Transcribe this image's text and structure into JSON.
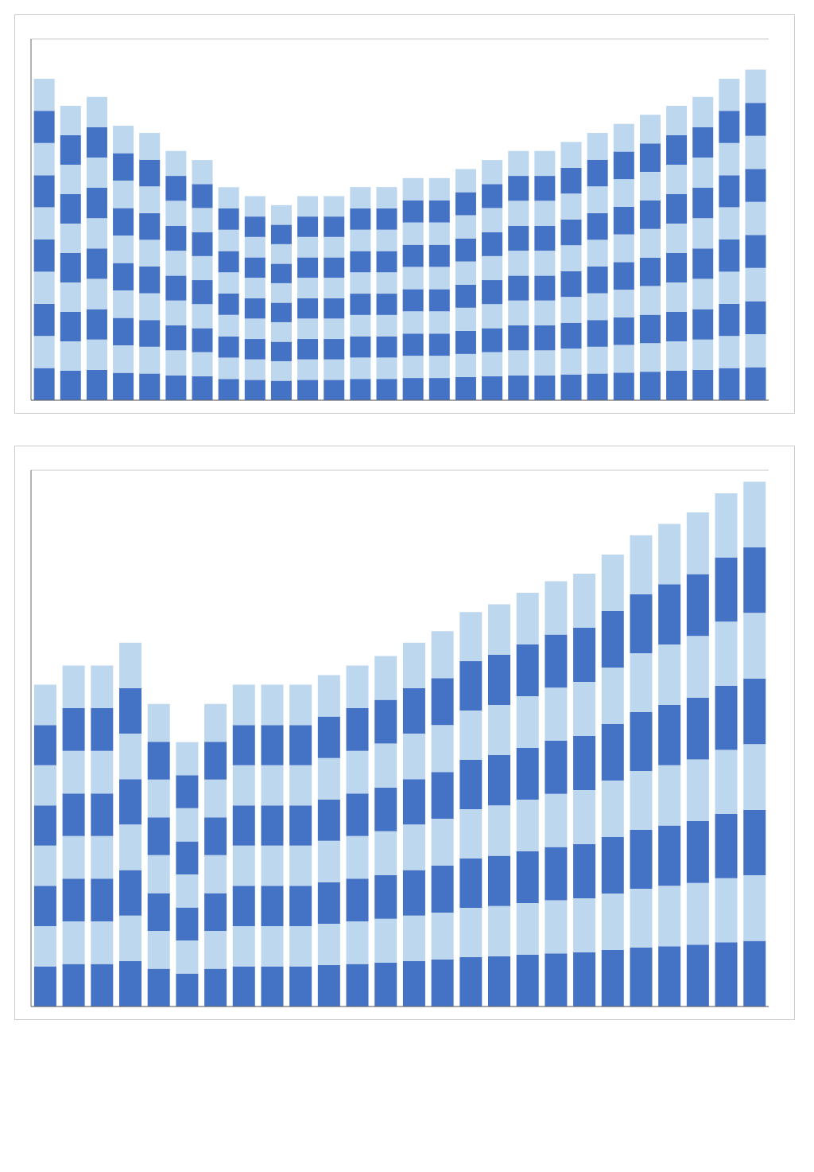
{
  "chart_data": [
    {
      "type": "bar",
      "stacked": true,
      "grid": true,
      "tick_labels": false,
      "categories": [
        null,
        null,
        null,
        null,
        null,
        null,
        null,
        null,
        null,
        null,
        null,
        null,
        null,
        null,
        null,
        null,
        null,
        null,
        null,
        null,
        null,
        null,
        null,
        null,
        null,
        null,
        null,
        null
      ],
      "ylim": [
        0,
        200
      ],
      "yticks": [
        0,
        20,
        40,
        60,
        80,
        100,
        120,
        140,
        160,
        180,
        200
      ],
      "series": [
        {
          "color": "#4472C4",
          "values": [
            17.8,
            16.3,
            16.8,
            15.2,
            14.8,
            13.8,
            13.3,
            11.8,
            11.3,
            10.8,
            11.3,
            11.3,
            11.8,
            11.8,
            12.3,
            12.3,
            12.8,
            13.3,
            13.8,
            13.8,
            14.3,
            14.8,
            15.3,
            15.8,
            16.3,
            16.8,
            17.8,
            18.3
          ]
        },
        {
          "color": "#BDD7EE",
          "values": [
            17.8,
            16.3,
            16.8,
            15.2,
            14.8,
            13.8,
            13.3,
            11.8,
            11.3,
            10.8,
            11.3,
            11.3,
            11.8,
            11.8,
            12.3,
            12.3,
            12.8,
            13.3,
            13.8,
            13.8,
            14.3,
            14.8,
            15.3,
            15.8,
            16.3,
            16.8,
            17.8,
            18.3
          ]
        },
        {
          "color": "#4472C4",
          "values": [
            17.8,
            16.3,
            16.8,
            15.2,
            14.8,
            13.8,
            13.3,
            11.8,
            11.3,
            10.8,
            11.3,
            11.3,
            11.8,
            11.8,
            12.3,
            12.3,
            12.8,
            13.3,
            13.8,
            13.8,
            14.3,
            14.8,
            15.3,
            15.8,
            16.3,
            16.8,
            17.8,
            18.3
          ]
        },
        {
          "color": "#BDD7EE",
          "values": [
            17.8,
            16.3,
            16.8,
            15.2,
            14.8,
            13.8,
            13.3,
            11.8,
            11.3,
            10.8,
            11.3,
            11.3,
            11.8,
            11.8,
            12.3,
            12.3,
            12.8,
            13.3,
            13.8,
            13.8,
            14.3,
            14.8,
            15.3,
            15.8,
            16.3,
            16.8,
            17.8,
            18.3
          ]
        },
        {
          "color": "#4472C4",
          "values": [
            17.8,
            16.3,
            16.8,
            15.2,
            14.8,
            13.8,
            13.3,
            11.8,
            11.3,
            10.8,
            11.3,
            11.3,
            11.8,
            11.8,
            12.3,
            12.3,
            12.8,
            13.3,
            13.8,
            13.8,
            14.3,
            14.8,
            15.3,
            15.8,
            16.3,
            16.8,
            17.8,
            18.3
          ]
        },
        {
          "color": "#BDD7EE",
          "values": [
            17.8,
            16.3,
            16.8,
            15.2,
            14.8,
            13.8,
            13.3,
            11.8,
            11.3,
            10.8,
            11.3,
            11.3,
            11.8,
            11.8,
            12.3,
            12.3,
            12.8,
            13.3,
            13.8,
            13.8,
            14.3,
            14.8,
            15.3,
            15.8,
            16.3,
            16.8,
            17.8,
            18.3
          ]
        },
        {
          "color": "#4472C4",
          "values": [
            17.8,
            16.3,
            16.8,
            15.2,
            14.8,
            13.8,
            13.3,
            11.8,
            11.3,
            10.8,
            11.3,
            11.3,
            11.8,
            11.8,
            12.3,
            12.3,
            12.8,
            13.3,
            13.8,
            13.8,
            14.3,
            14.8,
            15.3,
            15.8,
            16.3,
            16.8,
            17.8,
            18.3
          ]
        },
        {
          "color": "#BDD7EE",
          "values": [
            17.8,
            16.3,
            16.8,
            15.2,
            14.8,
            13.8,
            13.3,
            11.8,
            11.3,
            10.8,
            11.3,
            11.3,
            11.8,
            11.8,
            12.3,
            12.3,
            12.8,
            13.3,
            13.8,
            13.8,
            14.3,
            14.8,
            15.3,
            15.8,
            16.3,
            16.8,
            17.8,
            18.3
          ]
        },
        {
          "color": "#4472C4",
          "values": [
            17.8,
            16.3,
            16.8,
            15.2,
            14.8,
            13.8,
            13.3,
            11.8,
            11.3,
            10.8,
            11.3,
            11.3,
            11.8,
            11.8,
            12.3,
            12.3,
            12.8,
            13.3,
            13.8,
            13.8,
            14.3,
            14.8,
            15.3,
            15.8,
            16.3,
            16.8,
            17.8,
            18.3
          ]
        },
        {
          "color": "#BDD7EE",
          "values": [
            17.8,
            16.3,
            16.8,
            15.2,
            14.8,
            13.8,
            13.3,
            11.8,
            11.3,
            10.8,
            11.3,
            11.3,
            11.8,
            11.8,
            12.3,
            12.3,
            12.8,
            13.3,
            13.8,
            13.8,
            14.3,
            14.8,
            15.3,
            15.8,
            16.3,
            16.8,
            17.8,
            18.3
          ]
        }
      ]
    },
    {
      "type": "bar",
      "stacked": true,
      "grid": true,
      "tick_labels": false,
      "categories": [
        null,
        null,
        null,
        null,
        null,
        null,
        null,
        null,
        null,
        null,
        null,
        null,
        null,
        null,
        null,
        null,
        null,
        null,
        null,
        null,
        null,
        null,
        null,
        null,
        null,
        null
      ],
      "ylim": [
        0,
        280
      ],
      "yticks": [
        0,
        40,
        80,
        120,
        160,
        200,
        240,
        280
      ],
      "series": [
        {
          "color": "#4472C4",
          "values": [
            21,
            22.25,
            22.25,
            23.75,
            19.75,
            17.25,
            19.75,
            21,
            21,
            21,
            21.625,
            22.25,
            22.875,
            23.75,
            24.5,
            25.75,
            26.25,
            27,
            27.75,
            28.25,
            29.5,
            30.75,
            31.5,
            32.25,
            33.5,
            34.25
          ]
        },
        {
          "color": "#BDD7EE",
          "values": [
            21,
            22.25,
            22.25,
            23.75,
            19.75,
            17.25,
            19.75,
            21,
            21,
            21,
            21.625,
            22.25,
            22.875,
            23.75,
            24.5,
            25.75,
            26.25,
            27,
            27.75,
            28.25,
            29.5,
            30.75,
            31.5,
            32.25,
            33.5,
            34.25
          ]
        },
        {
          "color": "#4472C4",
          "values": [
            21,
            22.25,
            22.25,
            23.75,
            19.75,
            17.25,
            19.75,
            21,
            21,
            21,
            21.625,
            22.25,
            22.875,
            23.75,
            24.5,
            25.75,
            26.25,
            27,
            27.75,
            28.25,
            29.5,
            30.75,
            31.5,
            32.25,
            33.5,
            34.25
          ]
        },
        {
          "color": "#BDD7EE",
          "values": [
            21,
            22.25,
            22.25,
            23.75,
            19.75,
            17.25,
            19.75,
            21,
            21,
            21,
            21.625,
            22.25,
            22.875,
            23.75,
            24.5,
            25.75,
            26.25,
            27,
            27.75,
            28.25,
            29.5,
            30.75,
            31.5,
            32.25,
            33.5,
            34.25
          ]
        },
        {
          "color": "#4472C4",
          "values": [
            21,
            22.25,
            22.25,
            23.75,
            19.75,
            17.25,
            19.75,
            21,
            21,
            21,
            21.625,
            22.25,
            22.875,
            23.75,
            24.5,
            25.75,
            26.25,
            27,
            27.75,
            28.25,
            29.5,
            30.75,
            31.5,
            32.25,
            33.5,
            34.25
          ]
        },
        {
          "color": "#BDD7EE",
          "values": [
            21,
            22.25,
            22.25,
            23.75,
            19.75,
            17.25,
            19.75,
            21,
            21,
            21,
            21.625,
            22.25,
            22.875,
            23.75,
            24.5,
            25.75,
            26.25,
            27,
            27.75,
            28.25,
            29.5,
            30.75,
            31.5,
            32.25,
            33.5,
            34.25
          ]
        },
        {
          "color": "#4472C4",
          "values": [
            21,
            22.25,
            22.25,
            23.75,
            19.75,
            17.25,
            19.75,
            21,
            21,
            21,
            21.625,
            22.25,
            22.875,
            23.75,
            24.5,
            25.75,
            26.25,
            27,
            27.75,
            28.25,
            29.5,
            30.75,
            31.5,
            32.25,
            33.5,
            34.25
          ]
        },
        {
          "color": "#BDD7EE",
          "values": [
            21,
            22.25,
            22.25,
            23.75,
            19.75,
            17.25,
            19.75,
            21,
            21,
            21,
            21.625,
            22.25,
            22.875,
            23.75,
            24.5,
            25.75,
            26.25,
            27,
            27.75,
            28.25,
            29.5,
            30.75,
            31.5,
            32.25,
            33.5,
            34.25
          ]
        }
      ]
    }
  ]
}
